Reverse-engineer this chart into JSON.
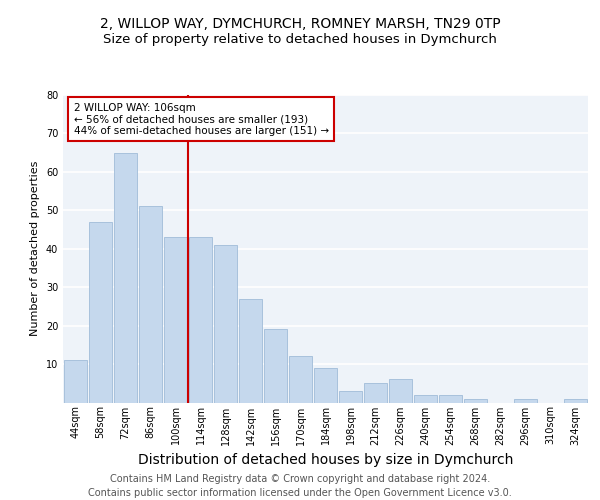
{
  "title1": "2, WILLOP WAY, DYMCHURCH, ROMNEY MARSH, TN29 0TP",
  "title2": "Size of property relative to detached houses in Dymchurch",
  "xlabel": "Distribution of detached houses by size in Dymchurch",
  "ylabel": "Number of detached properties",
  "categories": [
    "44sqm",
    "58sqm",
    "72sqm",
    "86sqm",
    "100sqm",
    "114sqm",
    "128sqm",
    "142sqm",
    "156sqm",
    "170sqm",
    "184sqm",
    "198sqm",
    "212sqm",
    "226sqm",
    "240sqm",
    "254sqm",
    "268sqm",
    "282sqm",
    "296sqm",
    "310sqm",
    "324sqm"
  ],
  "values": [
    11,
    47,
    65,
    51,
    43,
    43,
    41,
    27,
    19,
    12,
    9,
    3,
    5,
    6,
    2,
    2,
    1,
    0,
    1,
    0,
    1
  ],
  "bar_color": "#c5d8ed",
  "bar_edge_color": "#a0bcd8",
  "vline_x": 4.5,
  "vline_color": "#cc0000",
  "annotation_text": "2 WILLOP WAY: 106sqm\n← 56% of detached houses are smaller (193)\n44% of semi-detached houses are larger (151) →",
  "annotation_box_color": "#ffffff",
  "annotation_box_edge": "#cc0000",
  "ylim": [
    0,
    80
  ],
  "yticks": [
    0,
    10,
    20,
    30,
    40,
    50,
    60,
    70,
    80
  ],
  "background_color": "#eef3f9",
  "grid_color": "#ffffff",
  "footer": "Contains HM Land Registry data © Crown copyright and database right 2024.\nContains public sector information licensed under the Open Government Licence v3.0.",
  "title1_fontsize": 10,
  "title2_fontsize": 9.5,
  "xlabel_fontsize": 10,
  "ylabel_fontsize": 8,
  "footer_fontsize": 7,
  "ann_fontsize": 7.5,
  "tick_fontsize": 7
}
